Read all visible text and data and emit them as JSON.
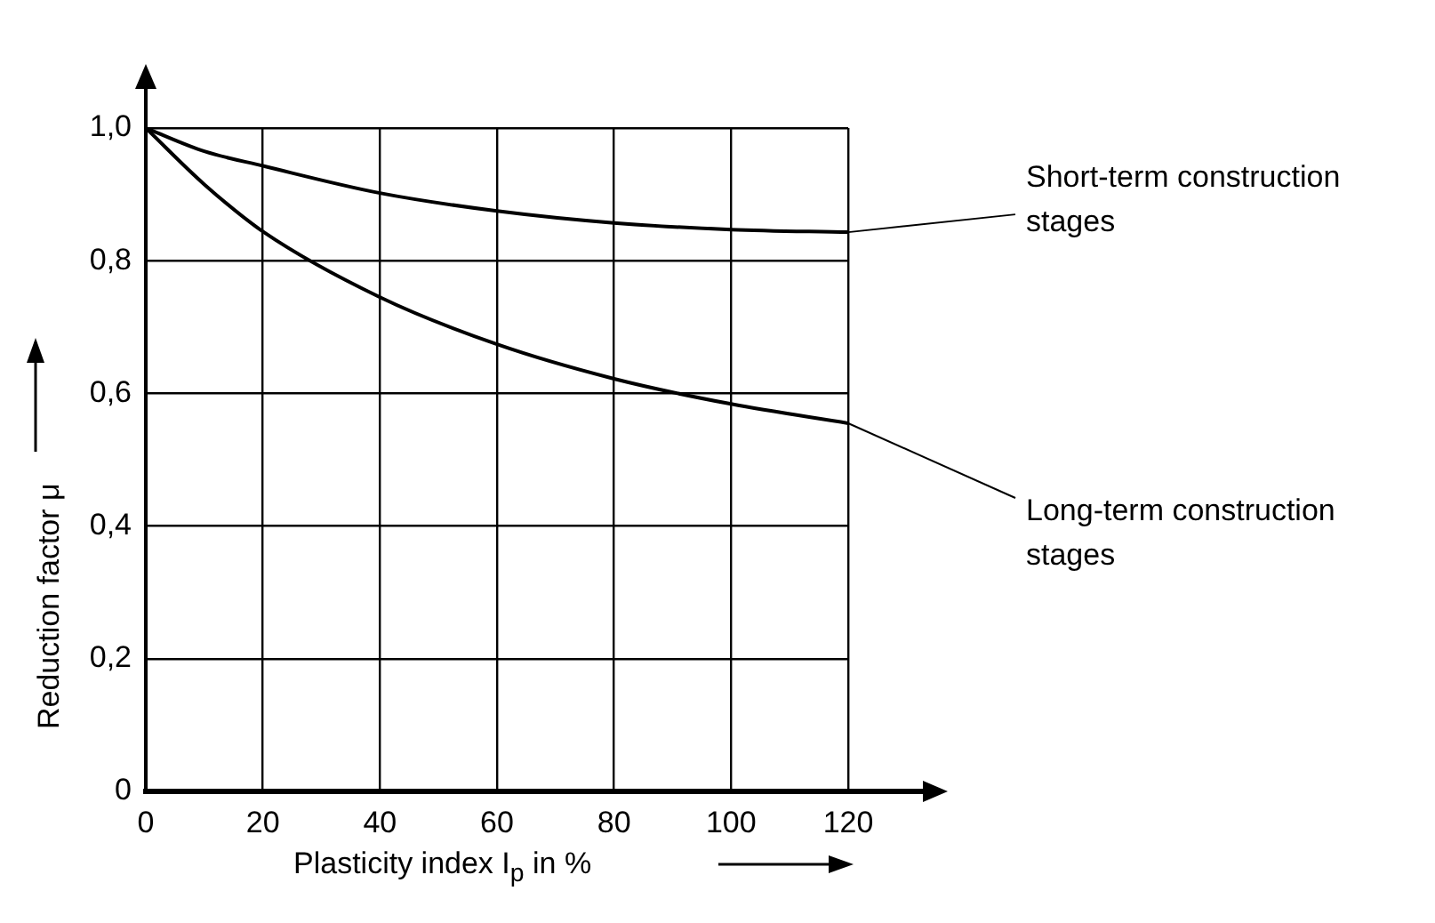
{
  "chart_data": {
    "type": "line",
    "xlabel": "Plasticity index I$_{p}$ in %",
    "ylabel": "Reduction factor μ",
    "x": [
      0,
      10,
      20,
      40,
      60,
      80,
      100,
      120
    ],
    "series": [
      {
        "name": "Short-term construction stages",
        "color": "#000000",
        "values": [
          1.0,
          0.965,
          0.943,
          0.902,
          0.875,
          0.857,
          0.847,
          0.843
        ]
      },
      {
        "name": "Long-term construction stages",
        "color": "#000000",
        "values": [
          1.0,
          0.915,
          0.844,
          0.745,
          0.674,
          0.622,
          0.584,
          0.555
        ]
      }
    ],
    "xlim": [
      0,
      120
    ],
    "xticks": [
      0,
      20,
      40,
      60,
      80,
      100,
      120
    ],
    "ylim": [
      0,
      1.0
    ],
    "yticks": [
      0,
      {
        "value": 0.2,
        "label": "0,2"
      },
      {
        "value": 0.4,
        "label": "0,4"
      },
      {
        "value": 0.6,
        "label": "0,6"
      },
      {
        "value": 0.8,
        "label": "0,8"
      },
      {
        "value": 1.0,
        "label": "1,0"
      }
    ],
    "grid": true,
    "legend": false,
    "marker": "none",
    "line_style": "solid"
  }
}
